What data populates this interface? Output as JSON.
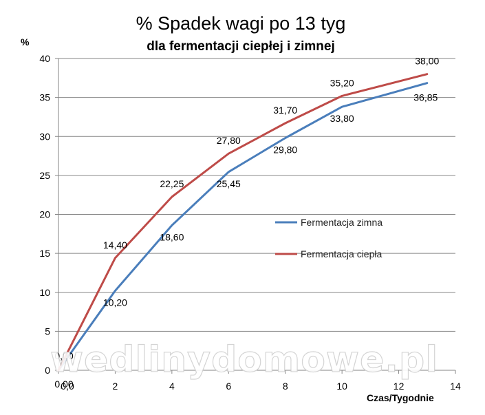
{
  "chart_data": {
    "type": "line",
    "title": "% Spadek wagi po 13 tyg",
    "subtitle": "dla fermentacji ciepłej i zimnej",
    "ylabel": "%",
    "xlabel": "Czas/Tygodnie",
    "xlim": [
      0,
      14
    ],
    "ylim": [
      0,
      40
    ],
    "x_ticks": [
      "0,0",
      "2",
      "4",
      "6",
      "8",
      "10",
      "12",
      "14"
    ],
    "y_ticks": [
      "0",
      "5",
      "10",
      "15",
      "20",
      "25",
      "30",
      "35",
      "40"
    ],
    "grid": "horizontal",
    "legend_position": "center-right",
    "series": [
      {
        "name": "Fermentacja zimna",
        "color": "#4a7ebb",
        "x": [
          0,
          2,
          4,
          6,
          8,
          10,
          13
        ],
        "values": [
          0.0,
          10.2,
          18.6,
          25.45,
          29.8,
          33.8,
          36.85
        ],
        "labels": [
          "0,00",
          "10,20",
          "18,60",
          "25,45",
          "29,80",
          "33,80",
          "36,85"
        ]
      },
      {
        "name": "Fermentacja ciepła",
        "color": "#be4b48",
        "x": [
          0,
          2,
          4,
          6,
          8,
          10,
          13
        ],
        "values": [
          0.0,
          14.4,
          22.25,
          27.8,
          31.7,
          35.2,
          38.0
        ],
        "labels": [
          "0,00",
          "14,40",
          "22,25",
          "27,80",
          "31,70",
          "35,20",
          "38,00"
        ]
      }
    ]
  },
  "watermark": "wedlinydomowe.pl"
}
